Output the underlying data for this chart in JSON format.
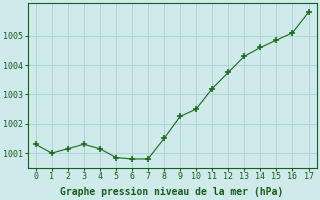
{
  "x": [
    0,
    1,
    2,
    3,
    4,
    5,
    6,
    7,
    8,
    9,
    10,
    11,
    12,
    13,
    14,
    15,
    16,
    17
  ],
  "y": [
    1001.3,
    1001.0,
    1001.15,
    1001.3,
    1001.15,
    1000.85,
    1000.8,
    1000.8,
    1001.5,
    1002.25,
    1002.5,
    1003.2,
    1003.75,
    1004.3,
    1004.6,
    1004.85,
    1005.1,
    1005.8
  ],
  "line_color": "#1a6b1a",
  "marker_color": "#1a6b1a",
  "bg_color": "#ceeaea",
  "grid_color": "#b0d4d4",
  "xlabel": "Graphe pression niveau de la mer (hPa)",
  "xlabel_color": "#1a5c1a",
  "tick_color": "#1a5c1a",
  "ylim": [
    1000.5,
    1006.1
  ],
  "yticks": [
    1001,
    1002,
    1003,
    1004,
    1005
  ],
  "xlim": [
    -0.5,
    17.5
  ],
  "figsize": [
    3.2,
    2.0
  ],
  "dpi": 100
}
